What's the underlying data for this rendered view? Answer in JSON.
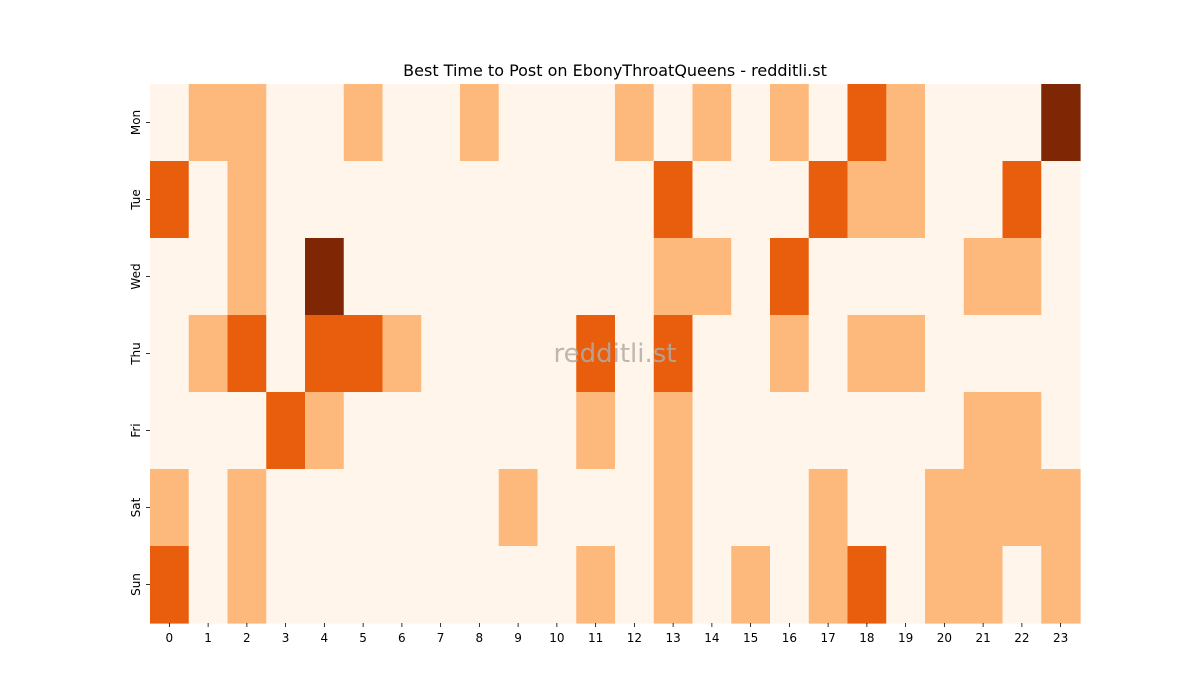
{
  "chart_data": {
    "type": "heatmap",
    "title": "Best Time to Post on EbonyThroatQueens - redditli.st",
    "x_categories": [
      "0",
      "1",
      "2",
      "3",
      "4",
      "5",
      "6",
      "7",
      "8",
      "9",
      "10",
      "11",
      "12",
      "13",
      "14",
      "15",
      "16",
      "17",
      "18",
      "19",
      "20",
      "21",
      "22",
      "23"
    ],
    "y_categories": [
      "Mon",
      "Tue",
      "Wed",
      "Thu",
      "Fri",
      "Sat",
      "Sun"
    ],
    "values": [
      [
        0,
        1,
        1,
        0,
        0,
        1,
        0,
        0,
        1,
        0,
        0,
        0,
        1,
        0,
        1,
        0,
        1,
        0,
        2,
        1,
        0,
        0,
        0,
        3
      ],
      [
        2,
        0,
        1,
        0,
        0,
        0,
        0,
        0,
        0,
        0,
        0,
        0,
        0,
        2,
        0,
        0,
        0,
        2,
        1,
        1,
        0,
        0,
        2,
        0
      ],
      [
        0,
        0,
        1,
        0,
        3,
        0,
        0,
        0,
        0,
        0,
        0,
        0,
        0,
        1,
        1,
        0,
        2,
        0,
        0,
        0,
        0,
        1,
        1,
        0
      ],
      [
        0,
        1,
        2,
        0,
        2,
        2,
        1,
        0,
        0,
        0,
        0,
        2,
        0,
        2,
        0,
        0,
        1,
        0,
        1,
        1,
        0,
        0,
        0,
        0
      ],
      [
        0,
        0,
        0,
        2,
        1,
        0,
        0,
        0,
        0,
        0,
        0,
        1,
        0,
        1,
        0,
        0,
        0,
        0,
        0,
        0,
        0,
        1,
        1,
        0
      ],
      [
        1,
        0,
        1,
        0,
        0,
        0,
        0,
        0,
        0,
        1,
        0,
        0,
        0,
        1,
        0,
        0,
        0,
        1,
        0,
        0,
        1,
        1,
        1,
        1
      ],
      [
        2,
        0,
        1,
        0,
        0,
        0,
        0,
        0,
        0,
        0,
        0,
        1,
        0,
        1,
        0,
        1,
        0,
        1,
        2,
        0,
        1,
        1,
        0,
        1
      ]
    ],
    "value_range": [
      0,
      3
    ],
    "colormap": [
      "#fff5eb",
      "#fdb87c",
      "#e95e0d",
      "#7f2704"
    ],
    "colorbar": false,
    "grid": false,
    "watermark": "redditli.st"
  }
}
